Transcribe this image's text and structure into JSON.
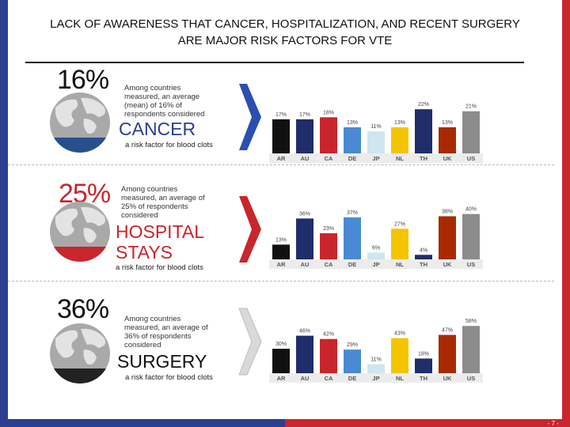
{
  "title_line1": "LACK OF AWARENESS THAT CANCER, HOSPITALIZATION, AND RECENT SURGERY",
  "title_line2": "ARE MAJOR RISK FACTORS FOR VTE",
  "page_number": "- 7 -",
  "colors": {
    "blue": "#2a3f8f",
    "red": "#c9252c",
    "black": "#111111",
    "bar_colors": [
      "#111111",
      "#1f2d6b",
      "#c9252c",
      "#4a8ad4",
      "#cde6f0",
      "#f5c400",
      "#1f2d6b",
      "#a82a00",
      "#8c8c8c"
    ]
  },
  "sections": [
    {
      "percent": "16%",
      "desc": [
        "Among countries",
        "measured, an average",
        "(mean) of 16% of",
        "respondents considered"
      ],
      "headline": [
        "CANCER"
      ],
      "subtitle": "a risk factor for blood clots",
      "icon": "globe-icon",
      "chevron": "chevron-right-blue-icon"
    },
    {
      "percent": "25%",
      "desc": [
        "Among countries",
        "measured, an average of",
        "25% of respondents",
        "considered"
      ],
      "headline": [
        "HOSPITAL",
        "STAYS"
      ],
      "subtitle": "a risk factor for blood clots",
      "icon": "globe-icon",
      "chevron": "chevron-right-red-icon"
    },
    {
      "percent": "36%",
      "desc": [
        "Among countries",
        "measured, an average of",
        "36% of respondents",
        "considered"
      ],
      "headline": [
        "SURGERY"
      ],
      "subtitle": "a risk factor for blood clots",
      "icon": "globe-icon",
      "chevron": "chevron-right-gray-icon"
    }
  ],
  "chart_data": [
    {
      "type": "bar",
      "title": "Cancer considered a risk factor",
      "categories": [
        "AR",
        "AU",
        "CA",
        "DE",
        "JP",
        "NL",
        "TH",
        "UK",
        "US"
      ],
      "values": [
        17,
        17,
        18,
        13,
        11,
        13,
        22,
        13,
        21
      ],
      "labels": [
        "17%",
        "17%",
        "18%",
        "13%",
        "11%",
        "13%",
        "22%",
        "13%",
        "21%"
      ],
      "ylim": [
        0,
        26
      ]
    },
    {
      "type": "bar",
      "title": "Hospital stays considered a risk factor",
      "categories": [
        "AR",
        "AU",
        "CA",
        "DE",
        "JP",
        "NL",
        "TH",
        "UK",
        "US"
      ],
      "values": [
        13,
        36,
        23,
        37,
        6,
        27,
        4,
        38,
        40
      ],
      "labels": [
        "13%",
        "36%",
        "23%",
        "37%",
        "6%",
        "27%",
        "4%",
        "38%",
        "40%"
      ],
      "ylim": [
        0,
        46
      ]
    },
    {
      "type": "bar",
      "title": "Surgery considered a risk factor",
      "categories": [
        "AR",
        "AU",
        "CA",
        "DE",
        "JP",
        "NL",
        "TH",
        "UK",
        "US"
      ],
      "values": [
        30,
        46,
        42,
        29,
        11,
        43,
        18,
        47,
        58
      ],
      "labels": [
        "30%",
        "46%",
        "42%",
        "29%",
        "11%",
        "43%",
        "18%",
        "47%",
        "58%"
      ],
      "ylim": [
        0,
        64
      ]
    }
  ]
}
